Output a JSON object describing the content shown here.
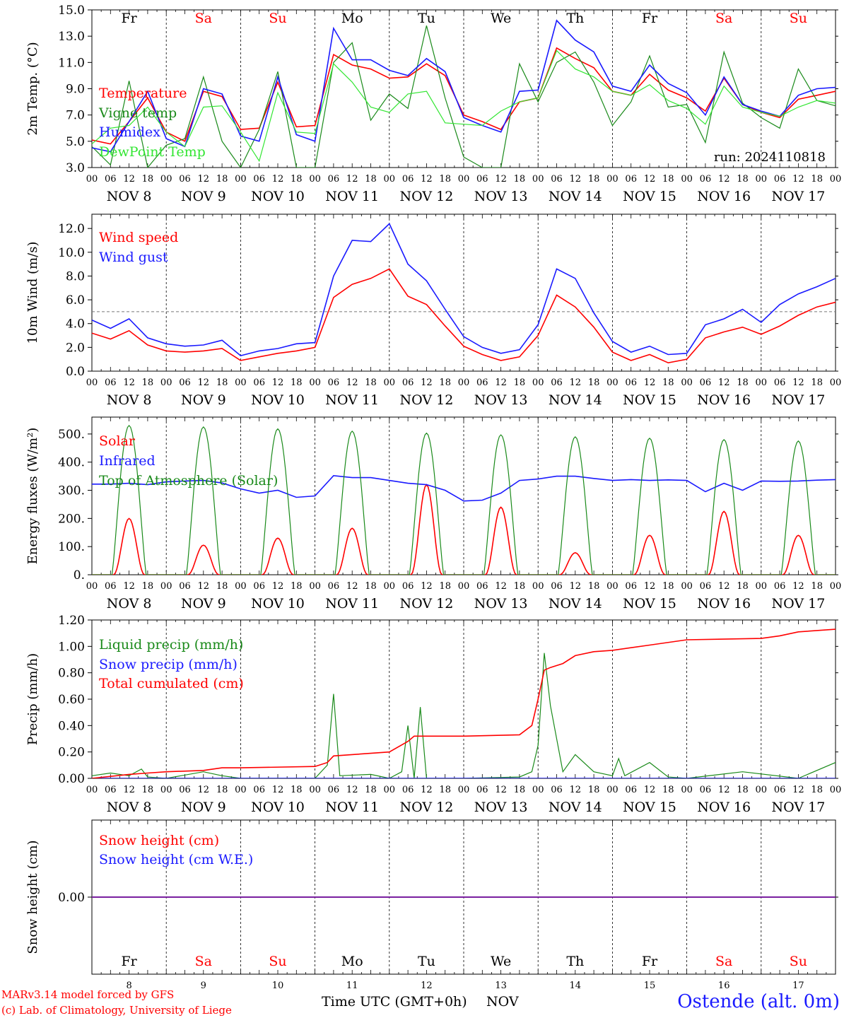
{
  "colors": {
    "red": "#ff0000",
    "darkgreen": "#1a8a1a",
    "blue": "#1a1aff",
    "lightgreen": "#33e633",
    "purple": "#7a1fa0",
    "grid": "#777777"
  },
  "day_names": [
    "Fr",
    "Sa",
    "Su",
    "Mo",
    "Tu",
    "We",
    "Th",
    "Fr",
    "Sa",
    "Su"
  ],
  "weekend_flags": [
    false,
    true,
    true,
    false,
    false,
    false,
    false,
    false,
    true,
    true
  ],
  "day_labels": [
    "NOV  8",
    "NOV  9",
    "NOV 10",
    "NOV 11",
    "NOV 12",
    "NOV 13",
    "NOV 14",
    "NOV 15",
    "NOV 16",
    "NOV 17"
  ],
  "hour_ticks": [
    "00",
    "06",
    "12",
    "18"
  ],
  "hour_tick_last": "00",
  "bottom_day_numbers": [
    "8",
    "9",
    "10",
    "11",
    "12",
    "13",
    "14",
    "15",
    "16",
    "17"
  ],
  "footer": {
    "model": "MARv3.14 model forced by GFS",
    "lab": "(c) Lab. of Climatology, University of Liege",
    "time_label": "Time UTC (GMT+0h)",
    "month": "NOV",
    "station": "Ostende (alt. 0m)"
  },
  "chart_data": [
    {
      "type": "line",
      "ylabel": "2m Temp. (°C)",
      "ylim": [
        3.0,
        15.0
      ],
      "yticks": [
        "3.0",
        "5.0",
        "7.0",
        "9.0",
        "11.0",
        "13.0",
        "15.0"
      ],
      "run_label": "run: 2024110818",
      "x_hours": [
        0,
        6,
        12,
        18,
        24,
        30,
        36,
        42,
        48,
        54,
        60,
        66,
        72,
        78,
        84,
        90,
        96,
        102,
        108,
        114,
        120,
        126,
        132,
        138,
        144,
        150,
        156,
        162,
        168,
        174,
        180,
        186,
        192,
        198,
        204,
        210,
        216,
        222,
        228,
        234,
        240
      ],
      "series": [
        {
          "name": "Temperature",
          "color": "red",
          "values": [
            5.1,
            4.8,
            6.5,
            8.3,
            5.7,
            5.0,
            8.8,
            8.4,
            5.9,
            6.0,
            9.5,
            6.1,
            6.2,
            11.6,
            10.8,
            10.5,
            9.8,
            9.9,
            10.9,
            10.0,
            7.0,
            6.5,
            5.9,
            8.0,
            8.3,
            12.1,
            11.3,
            10.6,
            8.8,
            8.5,
            10.1,
            8.9,
            8.3,
            7.3,
            9.8,
            7.8,
            7.2,
            6.8,
            8.2,
            8.5,
            8.8
          ]
        },
        {
          "name": "Vigne temp",
          "color": "darkgreen",
          "values": [
            4.6,
            3.2,
            9.6,
            3.0,
            4.7,
            5.2,
            9.9,
            5.0,
            3.0,
            5.9,
            10.3,
            3.0,
            3.0,
            11.0,
            12.5,
            6.6,
            8.6,
            7.5,
            13.8,
            8.3,
            3.8,
            3.0,
            3.0,
            10.9,
            8.0,
            11.0,
            11.8,
            9.5,
            6.2,
            8.0,
            11.5,
            7.6,
            7.8,
            4.9,
            11.8,
            7.9,
            6.8,
            6.0,
            10.5,
            8.1,
            7.7
          ]
        },
        {
          "name": "Humidex",
          "color": "blue",
          "values": [
            4.5,
            4.2,
            6.5,
            8.8,
            5.2,
            4.6,
            9.0,
            8.6,
            5.4,
            5.0,
            9.9,
            5.5,
            5.0,
            13.6,
            11.2,
            11.2,
            10.4,
            10.0,
            11.3,
            10.3,
            6.8,
            6.2,
            5.7,
            8.8,
            8.9,
            14.2,
            12.7,
            11.8,
            9.2,
            8.8,
            10.8,
            9.4,
            8.7,
            7.0,
            9.9,
            7.8,
            7.3,
            6.9,
            8.5,
            9.0,
            9.1
          ]
        },
        {
          "name": "DewPoint Temp",
          "color": "lightgreen",
          "values": [
            4.8,
            6.0,
            6.2,
            7.6,
            5.7,
            4.6,
            7.6,
            7.7,
            5.7,
            3.5,
            8.7,
            5.7,
            5.6,
            10.9,
            9.5,
            7.6,
            7.2,
            8.6,
            8.8,
            6.4,
            6.3,
            6.2,
            7.3,
            8.0,
            8.3,
            11.9,
            10.5,
            9.9,
            8.8,
            8.5,
            9.3,
            8.1,
            7.5,
            6.3,
            9.2,
            7.6,
            7.2,
            6.9,
            7.6,
            8.1,
            7.9
          ]
        }
      ]
    },
    {
      "type": "line",
      "ylabel": "10m Wind (m/s)",
      "ylim": [
        0.0,
        13.2
      ],
      "yticks": [
        "0.0",
        "2.0",
        "4.0",
        "6.0",
        "8.0",
        "10.0",
        "12.0"
      ],
      "reference_line": 5.0,
      "x_hours": [
        0,
        6,
        12,
        18,
        24,
        30,
        36,
        42,
        48,
        54,
        60,
        66,
        72,
        78,
        84,
        90,
        96,
        102,
        108,
        114,
        120,
        126,
        132,
        138,
        144,
        150,
        156,
        162,
        168,
        174,
        180,
        186,
        192,
        198,
        204,
        210,
        216,
        222,
        228,
        234,
        240
      ],
      "series": [
        {
          "name": "Wind speed",
          "color": "red",
          "values": [
            3.2,
            2.7,
            3.4,
            2.2,
            1.7,
            1.6,
            1.7,
            1.9,
            0.9,
            1.2,
            1.5,
            1.7,
            2.0,
            6.2,
            7.3,
            7.8,
            8.6,
            6.3,
            5.6,
            3.8,
            2.1,
            1.4,
            0.9,
            1.2,
            3.0,
            6.4,
            5.4,
            3.7,
            1.6,
            0.9,
            1.4,
            0.7,
            1.0,
            2.8,
            3.3,
            3.7,
            3.1,
            3.8,
            4.7,
            5.4,
            5.8
          ]
        },
        {
          "name": "Wind gust",
          "color": "blue",
          "values": [
            4.3,
            3.6,
            4.4,
            2.8,
            2.3,
            2.1,
            2.2,
            2.6,
            1.3,
            1.7,
            1.9,
            2.3,
            2.4,
            8.0,
            11.0,
            10.9,
            12.4,
            9.0,
            7.6,
            5.2,
            2.9,
            2.0,
            1.5,
            1.8,
            3.9,
            8.6,
            7.8,
            4.9,
            2.5,
            1.6,
            2.1,
            1.4,
            1.5,
            3.9,
            4.4,
            5.2,
            4.1,
            5.6,
            6.5,
            7.1,
            7.8
          ]
        }
      ]
    },
    {
      "type": "line",
      "ylabel": "Energy fluxes (W/m²)",
      "ylim": [
        0,
        560
      ],
      "yticks": [
        "0.",
        "100.",
        "200.",
        "300.",
        "400.",
        "500."
      ],
      "peaks_day_hours": 12,
      "series": [
        {
          "name": "Solar",
          "color": "red",
          "daily_peaks": [
            200,
            105,
            130,
            165,
            320,
            240,
            78,
            140,
            225,
            140
          ]
        },
        {
          "name": "Infrared",
          "color": "blue",
          "x_hours": [
            0,
            6,
            12,
            18,
            24,
            30,
            36,
            42,
            48,
            54,
            60,
            66,
            72,
            78,
            84,
            90,
            96,
            102,
            108,
            114,
            120,
            126,
            132,
            138,
            144,
            150,
            156,
            162,
            168,
            174,
            180,
            186,
            192,
            198,
            204,
            210,
            216,
            222,
            228,
            234,
            240
          ],
          "values": [
            322,
            322,
            325,
            320,
            330,
            333,
            335,
            326,
            305,
            290,
            300,
            275,
            280,
            352,
            345,
            345,
            335,
            325,
            320,
            300,
            262,
            265,
            290,
            335,
            340,
            350,
            350,
            342,
            335,
            338,
            335,
            337,
            335,
            295,
            325,
            300,
            333,
            332,
            333,
            336,
            338
          ]
        },
        {
          "name": "Top of Atmosphere (Solar)",
          "color": "darkgreen",
          "daily_peaks": [
            530,
            525,
            518,
            510,
            503,
            497,
            490,
            485,
            480,
            475
          ]
        }
      ]
    },
    {
      "type": "line",
      "ylabel": "Precip (mm/h)",
      "ylim": [
        0.0,
        1.2
      ],
      "yticks": [
        "0.00",
        "0.20",
        "0.40",
        "0.60",
        "0.80",
        "1.00",
        "1.20"
      ],
      "series": [
        {
          "name": "Liquid precip (mm/h)",
          "color": "darkgreen",
          "x_hours": [
            0,
            6,
            12,
            16,
            18,
            24,
            36,
            42,
            48,
            72,
            76,
            78,
            80,
            90,
            96,
            100,
            102,
            104,
            106,
            108,
            120,
            138,
            142,
            144,
            146,
            148,
            152,
            156,
            162,
            168,
            170,
            172,
            180,
            186,
            192,
            210,
            228,
            240
          ],
          "values": [
            0.02,
            0.04,
            0.02,
            0.07,
            0.01,
            0.0,
            0.05,
            0.02,
            0.0,
            0.0,
            0.1,
            0.64,
            0.02,
            0.03,
            0.0,
            0.05,
            0.4,
            0.0,
            0.54,
            0.0,
            0.0,
            0.01,
            0.05,
            0.25,
            0.95,
            0.55,
            0.05,
            0.18,
            0.05,
            0.02,
            0.15,
            0.02,
            0.12,
            0.01,
            0.0,
            0.05,
            0.0,
            0.12
          ]
        },
        {
          "name": "Snow precip (mm/h)",
          "color": "blue",
          "x_hours": [
            0,
            240
          ],
          "values": [
            0.0,
            0.0
          ]
        },
        {
          "name": "Total cumulated (cm)",
          "color": "red",
          "x_hours": [
            0,
            12,
            18,
            24,
            36,
            42,
            48,
            72,
            76,
            78,
            84,
            96,
            102,
            104,
            108,
            120,
            138,
            142,
            144,
            146,
            148,
            152,
            156,
            162,
            168,
            174,
            180,
            192,
            216,
            222,
            228,
            240
          ],
          "values": [
            0.0,
            0.03,
            0.04,
            0.05,
            0.06,
            0.08,
            0.08,
            0.09,
            0.12,
            0.17,
            0.18,
            0.2,
            0.28,
            0.32,
            0.32,
            0.32,
            0.33,
            0.4,
            0.6,
            0.82,
            0.84,
            0.87,
            0.93,
            0.96,
            0.97,
            0.99,
            1.01,
            1.05,
            1.06,
            1.08,
            1.11,
            1.13
          ]
        }
      ]
    },
    {
      "type": "line",
      "ylabel": "Snow height (cm)",
      "ylim": [
        -1,
        1
      ],
      "yticks": [
        "0.00"
      ],
      "series": [
        {
          "name": "Snow height (cm)",
          "color": "red",
          "x_hours": [
            0,
            240
          ],
          "values": [
            0.0,
            0.0
          ]
        },
        {
          "name": "Snow height (cm W.E.)",
          "color": "blue",
          "x_hours": [
            0,
            240
          ],
          "values": [
            0.0,
            0.0
          ]
        }
      ]
    }
  ]
}
